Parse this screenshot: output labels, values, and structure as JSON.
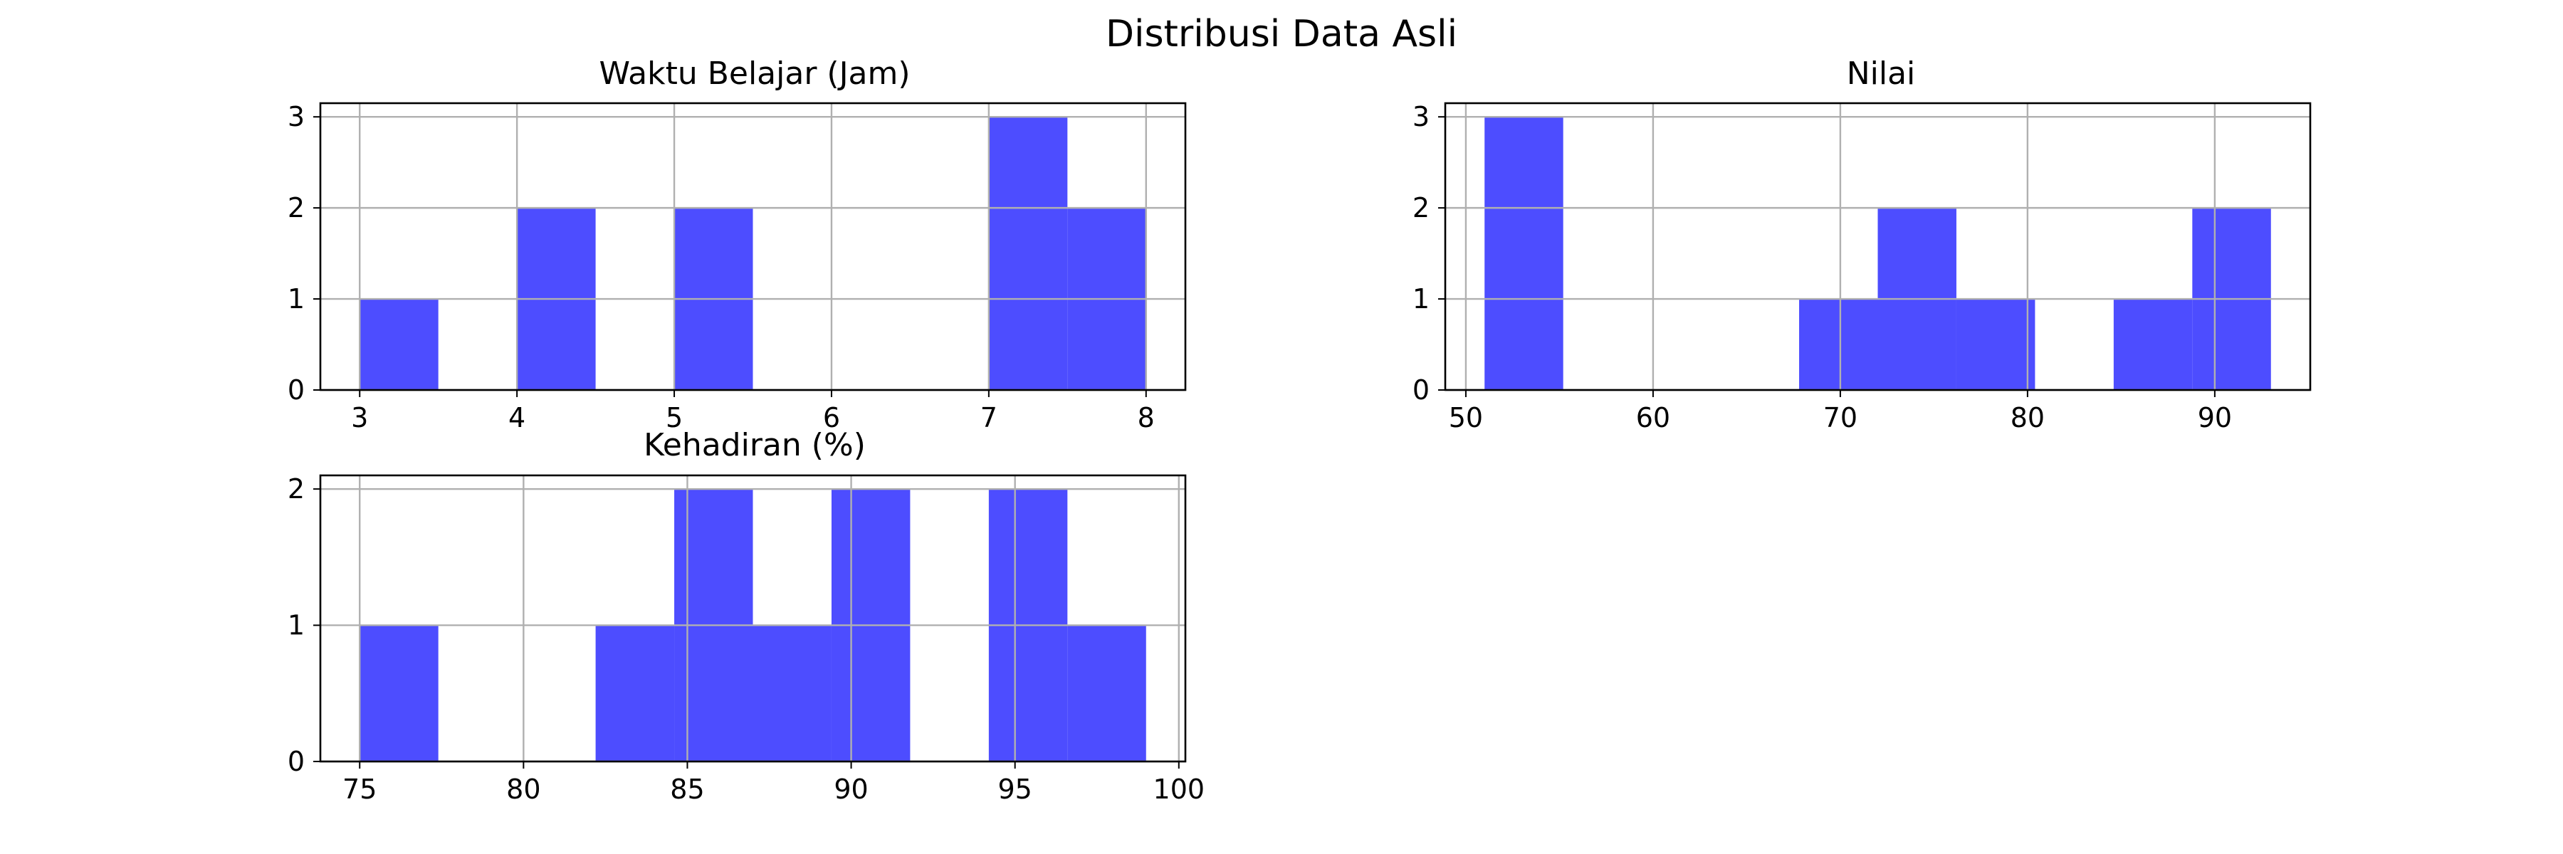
{
  "figure": {
    "title": "Distribusi Data Asli"
  },
  "style": {
    "bar_color": "#4d4dff",
    "grid": true
  },
  "chart_data": [
    {
      "type": "bar",
      "title": "Waktu Belajar (Jam)",
      "bins": [
        {
          "x0": 3.0,
          "x1": 3.5,
          "count": 1
        },
        {
          "x0": 3.5,
          "x1": 4.0,
          "count": 0
        },
        {
          "x0": 4.0,
          "x1": 4.5,
          "count": 2
        },
        {
          "x0": 4.5,
          "x1": 5.0,
          "count": 0
        },
        {
          "x0": 5.0,
          "x1": 5.5,
          "count": 2
        },
        {
          "x0": 5.5,
          "x1": 6.0,
          "count": 0
        },
        {
          "x0": 6.0,
          "x1": 6.5,
          "count": 0
        },
        {
          "x0": 6.5,
          "x1": 7.0,
          "count": 0
        },
        {
          "x0": 7.0,
          "x1": 7.5,
          "count": 3
        },
        {
          "x0": 7.5,
          "x1": 8.0,
          "count": 2
        }
      ],
      "xlim": [
        2.75,
        8.25
      ],
      "ylim": [
        0,
        3.15
      ],
      "xticks": [
        3,
        4,
        5,
        6,
        7,
        8
      ],
      "yticks": [
        0,
        1,
        2,
        3
      ]
    },
    {
      "type": "bar",
      "title": "Nilai",
      "bins": [
        {
          "x0": 51.0,
          "x1": 55.2,
          "count": 3
        },
        {
          "x0": 55.2,
          "x1": 59.4,
          "count": 0
        },
        {
          "x0": 59.4,
          "x1": 63.6,
          "count": 0
        },
        {
          "x0": 63.6,
          "x1": 67.8,
          "count": 0
        },
        {
          "x0": 67.8,
          "x1": 72.0,
          "count": 1
        },
        {
          "x0": 72.0,
          "x1": 76.2,
          "count": 2
        },
        {
          "x0": 76.2,
          "x1": 80.4,
          "count": 1
        },
        {
          "x0": 80.4,
          "x1": 84.6,
          "count": 0
        },
        {
          "x0": 84.6,
          "x1": 88.8,
          "count": 1
        },
        {
          "x0": 88.8,
          "x1": 93.0,
          "count": 2
        }
      ],
      "xlim": [
        48.9,
        95.1
      ],
      "ylim": [
        0,
        3.15
      ],
      "xticks": [
        50,
        60,
        70,
        80,
        90
      ],
      "yticks": [
        0,
        1,
        2,
        3
      ]
    },
    {
      "type": "bar",
      "title": "Kehadiran (%)",
      "bins": [
        {
          "x0": 75.0,
          "x1": 77.4,
          "count": 1
        },
        {
          "x0": 77.4,
          "x1": 79.8,
          "count": 0
        },
        {
          "x0": 79.8,
          "x1": 82.2,
          "count": 0
        },
        {
          "x0": 82.2,
          "x1": 84.6,
          "count": 1
        },
        {
          "x0": 84.6,
          "x1": 87.0,
          "count": 2
        },
        {
          "x0": 87.0,
          "x1": 89.4,
          "count": 1
        },
        {
          "x0": 89.4,
          "x1": 91.8,
          "count": 2
        },
        {
          "x0": 91.8,
          "x1": 94.2,
          "count": 0
        },
        {
          "x0": 94.2,
          "x1": 96.6,
          "count": 2
        },
        {
          "x0": 96.6,
          "x1": 99.0,
          "count": 1
        }
      ],
      "xlim": [
        73.8,
        100.2
      ],
      "ylim": [
        0,
        2.1
      ],
      "xticks": [
        75,
        80,
        85,
        90,
        95,
        100
      ],
      "yticks": [
        0,
        1,
        2
      ]
    }
  ]
}
